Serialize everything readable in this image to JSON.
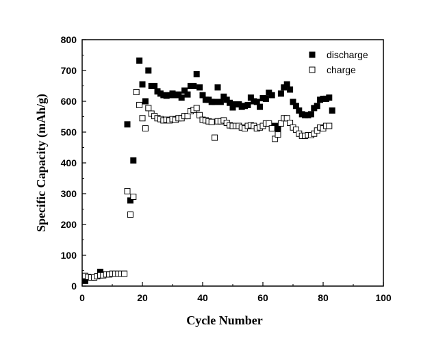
{
  "chart_data": {
    "type": "scatter",
    "xlabel": "Cycle Number",
    "ylabel": "Specific Capacity (mAh/g)",
    "xlim": [
      0,
      100
    ],
    "ylim": [
      0,
      800
    ],
    "x_ticks": [
      0,
      20,
      40,
      60,
      80,
      100
    ],
    "y_ticks": [
      0,
      100,
      200,
      300,
      400,
      500,
      600,
      700,
      800
    ],
    "grid": false,
    "legend_position": "top-right",
    "series": [
      {
        "name": "discharge",
        "marker": "filled-square",
        "color": "#000000",
        "points": [
          [
            1,
            17
          ],
          [
            6,
            46
          ],
          [
            15,
            525
          ],
          [
            16,
            278
          ],
          [
            17,
            408
          ],
          [
            19,
            732
          ],
          [
            20,
            655
          ],
          [
            21,
            600
          ],
          [
            22,
            700
          ],
          [
            23,
            650
          ],
          [
            24,
            650
          ],
          [
            25,
            632
          ],
          [
            26,
            625
          ],
          [
            27,
            620
          ],
          [
            28,
            618
          ],
          [
            29,
            620
          ],
          [
            30,
            625
          ],
          [
            31,
            620
          ],
          [
            32,
            622
          ],
          [
            33,
            612
          ],
          [
            34,
            635
          ],
          [
            35,
            622
          ],
          [
            36,
            650
          ],
          [
            37,
            650
          ],
          [
            38,
            688
          ],
          [
            39,
            645
          ],
          [
            40,
            620
          ],
          [
            41,
            605
          ],
          [
            42,
            605
          ],
          [
            43,
            598
          ],
          [
            44,
            598
          ],
          [
            45,
            645
          ],
          [
            46,
            598
          ],
          [
            47,
            615
          ],
          [
            48,
            605
          ],
          [
            49,
            595
          ],
          [
            50,
            580
          ],
          [
            51,
            590
          ],
          [
            52,
            590
          ],
          [
            53,
            582
          ],
          [
            54,
            585
          ],
          [
            55,
            588
          ],
          [
            56,
            612
          ],
          [
            57,
            600
          ],
          [
            58,
            598
          ],
          [
            59,
            582
          ],
          [
            60,
            610
          ],
          [
            61,
            608
          ],
          [
            62,
            628
          ],
          [
            63,
            620
          ],
          [
            64,
            520
          ],
          [
            65,
            512
          ],
          [
            66,
            625
          ],
          [
            67,
            645
          ],
          [
            68,
            655
          ],
          [
            69,
            638
          ],
          [
            70,
            598
          ],
          [
            71,
            585
          ],
          [
            72,
            570
          ],
          [
            73,
            558
          ],
          [
            74,
            555
          ],
          [
            75,
            555
          ],
          [
            76,
            558
          ],
          [
            77,
            578
          ],
          [
            78,
            585
          ],
          [
            79,
            605
          ],
          [
            80,
            608
          ],
          [
            81,
            608
          ],
          [
            82,
            612
          ],
          [
            83,
            570
          ]
        ]
      },
      {
        "name": "charge",
        "marker": "open-square",
        "color": "#000000",
        "points": [
          [
            1,
            33
          ],
          [
            2,
            30
          ],
          [
            3,
            28
          ],
          [
            4,
            28
          ],
          [
            5,
            32
          ],
          [
            6,
            35
          ],
          [
            7,
            35
          ],
          [
            8,
            38
          ],
          [
            9,
            38
          ],
          [
            10,
            40
          ],
          [
            11,
            40
          ],
          [
            12,
            40
          ],
          [
            13,
            40
          ],
          [
            14,
            40
          ],
          [
            15,
            308
          ],
          [
            16,
            232
          ],
          [
            17,
            290
          ],
          [
            18,
            630
          ],
          [
            19,
            588
          ],
          [
            20,
            545
          ],
          [
            21,
            512
          ],
          [
            22,
            578
          ],
          [
            23,
            560
          ],
          [
            24,
            552
          ],
          [
            25,
            545
          ],
          [
            26,
            542
          ],
          [
            27,
            538
          ],
          [
            28,
            540
          ],
          [
            29,
            538
          ],
          [
            30,
            542
          ],
          [
            31,
            540
          ],
          [
            32,
            545
          ],
          [
            33,
            545
          ],
          [
            34,
            552
          ],
          [
            35,
            552
          ],
          [
            36,
            568
          ],
          [
            37,
            572
          ],
          [
            38,
            578
          ],
          [
            39,
            555
          ],
          [
            40,
            540
          ],
          [
            41,
            538
          ],
          [
            42,
            535
          ],
          [
            43,
            533
          ],
          [
            44,
            482
          ],
          [
            45,
            535
          ],
          [
            46,
            535
          ],
          [
            47,
            538
          ],
          [
            48,
            530
          ],
          [
            49,
            522
          ],
          [
            50,
            520
          ],
          [
            51,
            520
          ],
          [
            52,
            520
          ],
          [
            53,
            515
          ],
          [
            54,
            512
          ],
          [
            55,
            520
          ],
          [
            56,
            522
          ],
          [
            57,
            520
          ],
          [
            58,
            512
          ],
          [
            59,
            515
          ],
          [
            60,
            520
          ],
          [
            61,
            528
          ],
          [
            62,
            528
          ],
          [
            63,
            512
          ],
          [
            64,
            478
          ],
          [
            65,
            492
          ],
          [
            66,
            528
          ],
          [
            67,
            545
          ],
          [
            68,
            545
          ],
          [
            69,
            530
          ],
          [
            70,
            515
          ],
          [
            71,
            508
          ],
          [
            72,
            495
          ],
          [
            73,
            488
          ],
          [
            74,
            488
          ],
          [
            75,
            490
          ],
          [
            76,
            490
          ],
          [
            77,
            495
          ],
          [
            78,
            505
          ],
          [
            79,
            515
          ],
          [
            80,
            512
          ],
          [
            81,
            520
          ],
          [
            82,
            520
          ]
        ]
      }
    ]
  }
}
